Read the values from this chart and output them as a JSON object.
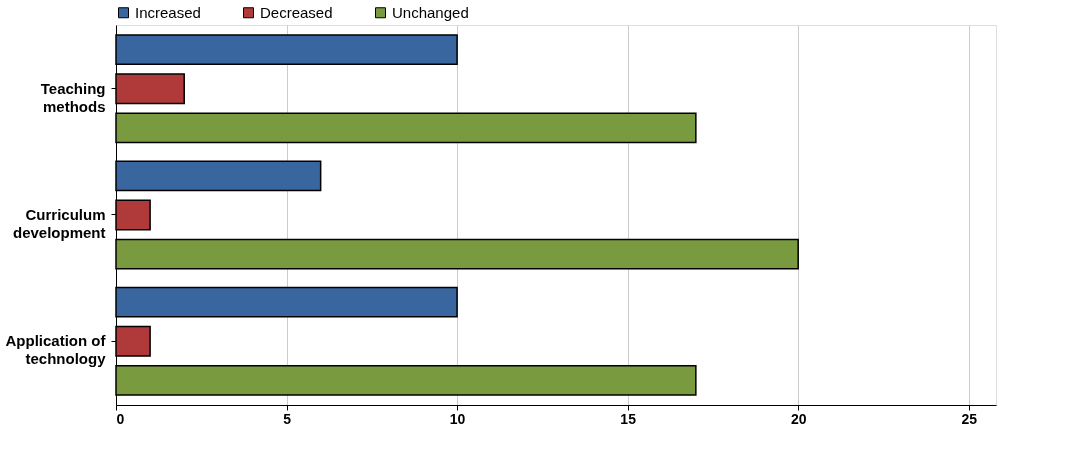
{
  "chart_data": {
    "type": "bar",
    "orientation": "horizontal",
    "categories": [
      "Teaching methods",
      "Curriculum development",
      "Application of technology"
    ],
    "series": [
      {
        "name": "Increased",
        "color": "#3a66a0",
        "values": [
          10,
          6,
          10
        ]
      },
      {
        "name": "Decreased",
        "color": "#b03a3a",
        "values": [
          2,
          1,
          1
        ]
      },
      {
        "name": "Unchanged",
        "color": "#7a9a3f",
        "values": [
          17,
          20,
          17
        ]
      }
    ],
    "xlim": [
      0,
      25.8
    ],
    "xticks": [
      0,
      5,
      10,
      15,
      20,
      25
    ],
    "grid": "x",
    "legend": "top left"
  }
}
